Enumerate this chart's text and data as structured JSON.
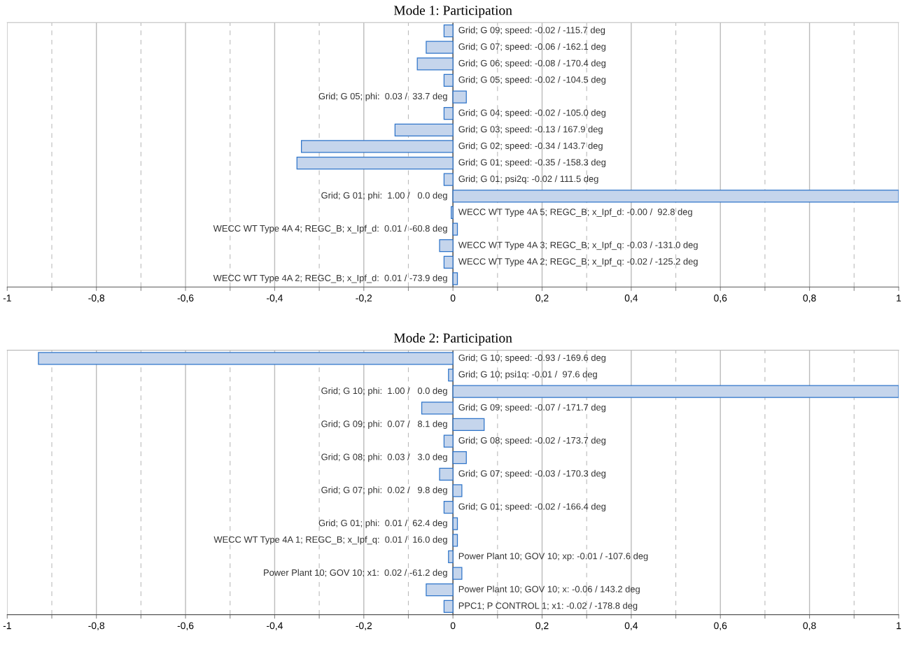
{
  "chart_data": [
    {
      "type": "bar",
      "orientation": "horizontal",
      "title": "Mode 1: Participation",
      "categories": [
        null,
        null,
        null,
        null,
        null,
        null,
        null,
        null,
        null,
        null,
        null,
        null,
        null,
        null,
        null,
        null
      ],
      "values": [
        -0.02,
        -0.06,
        -0.08,
        -0.02,
        0.03,
        -0.02,
        -0.13,
        -0.34,
        -0.35,
        -0.02,
        1.0,
        -0.004,
        0.01,
        -0.03,
        -0.02,
        0.01
      ],
      "value_labels": [
        "Grid; G 09; speed: -0.02 / -115.7 deg",
        "Grid; G 07; speed: -0.06 / -162.1 deg",
        "Grid; G 06; speed: -0.08 / -170.4 deg",
        "Grid; G 05; speed: -0.02 / -104.5 deg",
        "Grid; G 05; phi:  0.03 /  33.7 deg",
        "Grid; G 04; speed: -0.02 / -105.0 deg",
        "Grid; G 03; speed: -0.13 / 167.9 deg",
        "Grid; G 02; speed: -0.34 / 143.7 deg",
        "Grid; G 01; speed: -0.35 / -158.3 deg",
        "Grid; G 01; psi2q: -0.02 / 111.5 deg",
        "Grid; G 01; phi:  1.00 /   0.0 deg",
        "WECC WT Type 4A 5; REGC_B; x_Ipf_d: -0.00 /  92.8 deg",
        "WECC WT Type 4A 4; REGC_B; x_Ipf_d:  0.01 / -60.8 deg",
        "WECC WT Type 4A 3; REGC_B; x_Ipf_q: -0.03 / -131.0 deg",
        "WECC WT Type 4A 2; REGC_B; x_Ipf_q: -0.02 / -125.2 deg",
        "WECC WT Type 4A 2; REGC_B; x_Ipf_d:  0.01 / -73.9 deg"
      ],
      "color": "#c5d5ec",
      "xlim": [
        -1,
        1
      ],
      "grid": "x",
      "xticks": [
        -1,
        {
          "value": -0.9,
          "label": null
        },
        {
          "value": -0.8,
          "label": "-0,8"
        },
        {
          "value": -0.7,
          "label": null
        },
        {
          "value": -0.6,
          "label": "-0,6"
        },
        {
          "value": -0.5,
          "label": null
        },
        {
          "value": -0.4,
          "label": "-0,4"
        },
        {
          "value": -0.3,
          "label": null
        },
        {
          "value": -0.2,
          "label": "-0,2"
        },
        {
          "value": -0.1,
          "label": null
        },
        0,
        {
          "value": 0.1,
          "label": null
        },
        {
          "value": 0.2,
          "label": "0,2"
        },
        {
          "value": 0.3,
          "label": null
        },
        {
          "value": 0.4,
          "label": "0,4"
        },
        {
          "value": 0.5,
          "label": null
        },
        {
          "value": 0.6,
          "label": "0,6"
        },
        {
          "value": 0.7,
          "label": null
        },
        {
          "value": 0.8,
          "label": "0,8"
        },
        {
          "value": 0.9,
          "label": null
        },
        1
      ]
    },
    {
      "type": "bar",
      "orientation": "horizontal",
      "title": "Mode 2: Participation",
      "categories": [
        null,
        null,
        null,
        null,
        null,
        null,
        null,
        null,
        null,
        null,
        null,
        null,
        null,
        null,
        null,
        null
      ],
      "values": [
        -0.93,
        -0.01,
        1.0,
        -0.07,
        0.07,
        -0.02,
        0.03,
        -0.03,
        0.02,
        -0.02,
        0.01,
        0.01,
        -0.01,
        0.02,
        -0.06,
        -0.02
      ],
      "value_labels": [
        "Grid; G 10; speed: -0.93 / -169.6 deg",
        "Grid; G 10; psi1q: -0.01 /  97.6 deg",
        "Grid; G 10; phi:  1.00 /   0.0 deg",
        "Grid; G 09; speed: -0.07 / -171.7 deg",
        "Grid; G 09; phi:  0.07 /   8.1 deg",
        "Grid; G 08; speed: -0.02 / -173.7 deg",
        "Grid; G 08; phi:  0.03 /   3.0 deg",
        "Grid; G 07; speed: -0.03 / -170.3 deg",
        "Grid; G 07; phi:  0.02 /   9.8 deg",
        "Grid; G 01; speed: -0.02 / -166.4 deg",
        "Grid; G 01; phi:  0.01 /  62.4 deg",
        "WECC WT Type 4A 1; REGC_B; x_Ipf_q:  0.01 /  16.0 deg",
        "Power Plant 10; GOV 10; xp: -0.01 / -107.6 deg",
        "Power Plant 10; GOV 10; x1:  0.02 / -61.2 deg",
        "Power Plant 10; GOV 10; x: -0.06 / 143.2 deg",
        "PPC1; P CONTROL 1; x1: -0.02 / -178.8 deg"
      ],
      "color": "#c5d5ec",
      "xlim": [
        -1,
        1
      ],
      "grid": "x",
      "xticks": [
        -1,
        {
          "value": -0.9,
          "label": null
        },
        {
          "value": -0.8,
          "label": "-0,8"
        },
        {
          "value": -0.7,
          "label": null
        },
        {
          "value": -0.6,
          "label": "-0,6"
        },
        {
          "value": -0.5,
          "label": null
        },
        {
          "value": -0.4,
          "label": "-0,4"
        },
        {
          "value": -0.3,
          "label": null
        },
        {
          "value": -0.2,
          "label": "-0,2"
        },
        {
          "value": -0.1,
          "label": null
        },
        0,
        {
          "value": 0.1,
          "label": null
        },
        {
          "value": 0.2,
          "label": "0,2"
        },
        {
          "value": 0.3,
          "label": null
        },
        {
          "value": 0.4,
          "label": "0,4"
        },
        {
          "value": 0.5,
          "label": null
        },
        {
          "value": 0.6,
          "label": "0,6"
        },
        {
          "value": 0.7,
          "label": null
        },
        {
          "value": 0.8,
          "label": "0,8"
        },
        {
          "value": 0.9,
          "label": null
        },
        1
      ]
    }
  ]
}
